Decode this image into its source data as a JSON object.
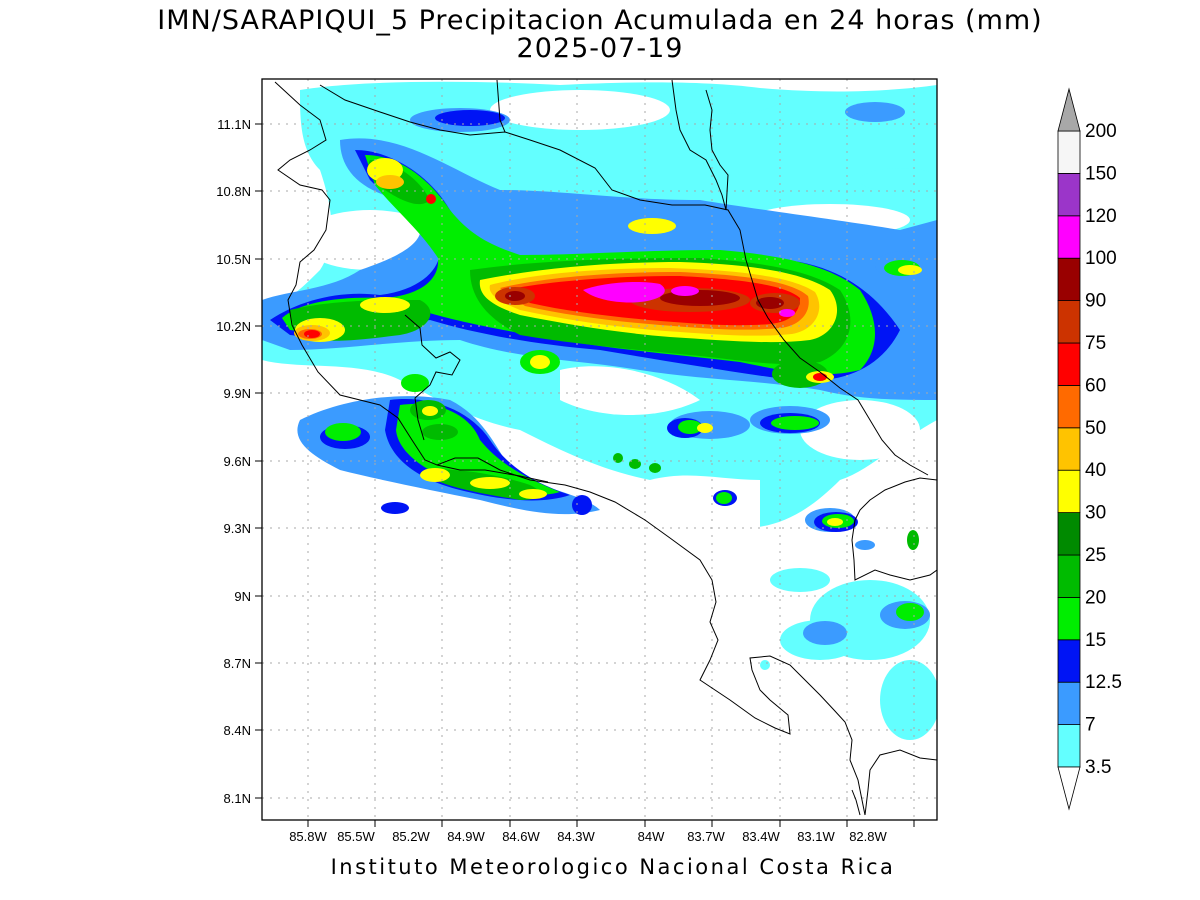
{
  "title": {
    "line1": "IMN/SARAPIQUI_5 Precipitacion Acumulada en 24 horas (mm)",
    "line2": "2025-07-19"
  },
  "footer": "Instituto Meteorologico Nacional Costa Rica",
  "map": {
    "lon_range": [
      -86.05,
      -82.55
    ],
    "lat_range": [
      8.0,
      11.3
    ],
    "lat_ticks": [
      "11.1N",
      "10.8N",
      "10.5N",
      "10.2N",
      "9.9N",
      "9.6N",
      "9.3N",
      "9N",
      "8.7N",
      "8.4N",
      "8.1N"
    ],
    "lon_ticks": [
      "85.8W",
      "85.5W",
      "85.2W",
      "84.9W",
      "84.6W",
      "84.3W",
      "84W",
      "83.7W",
      "83.4W",
      "83.1W",
      "82.8W"
    ],
    "grid": true,
    "max_precip_area": "central-north (84.0W-83.3W, ~10.35N)"
  },
  "colorbar": {
    "labels": [
      "3.5",
      "7",
      "12.5",
      "15",
      "20",
      "25",
      "30",
      "40",
      "50",
      "60",
      "75",
      "90",
      "100",
      "120",
      "150",
      "200"
    ],
    "colors": [
      "#63ffff",
      "#3b9bff",
      "#0014f5",
      "#00ee00",
      "#00bb00",
      "#008a00",
      "#ffff00",
      "#ffc300",
      "#ff6a00",
      "#ff0000",
      "#cc3300",
      "#990000",
      "#ff00ff",
      "#9b35c9",
      "#f6f6f6",
      "#a8a8a8"
    ]
  }
}
